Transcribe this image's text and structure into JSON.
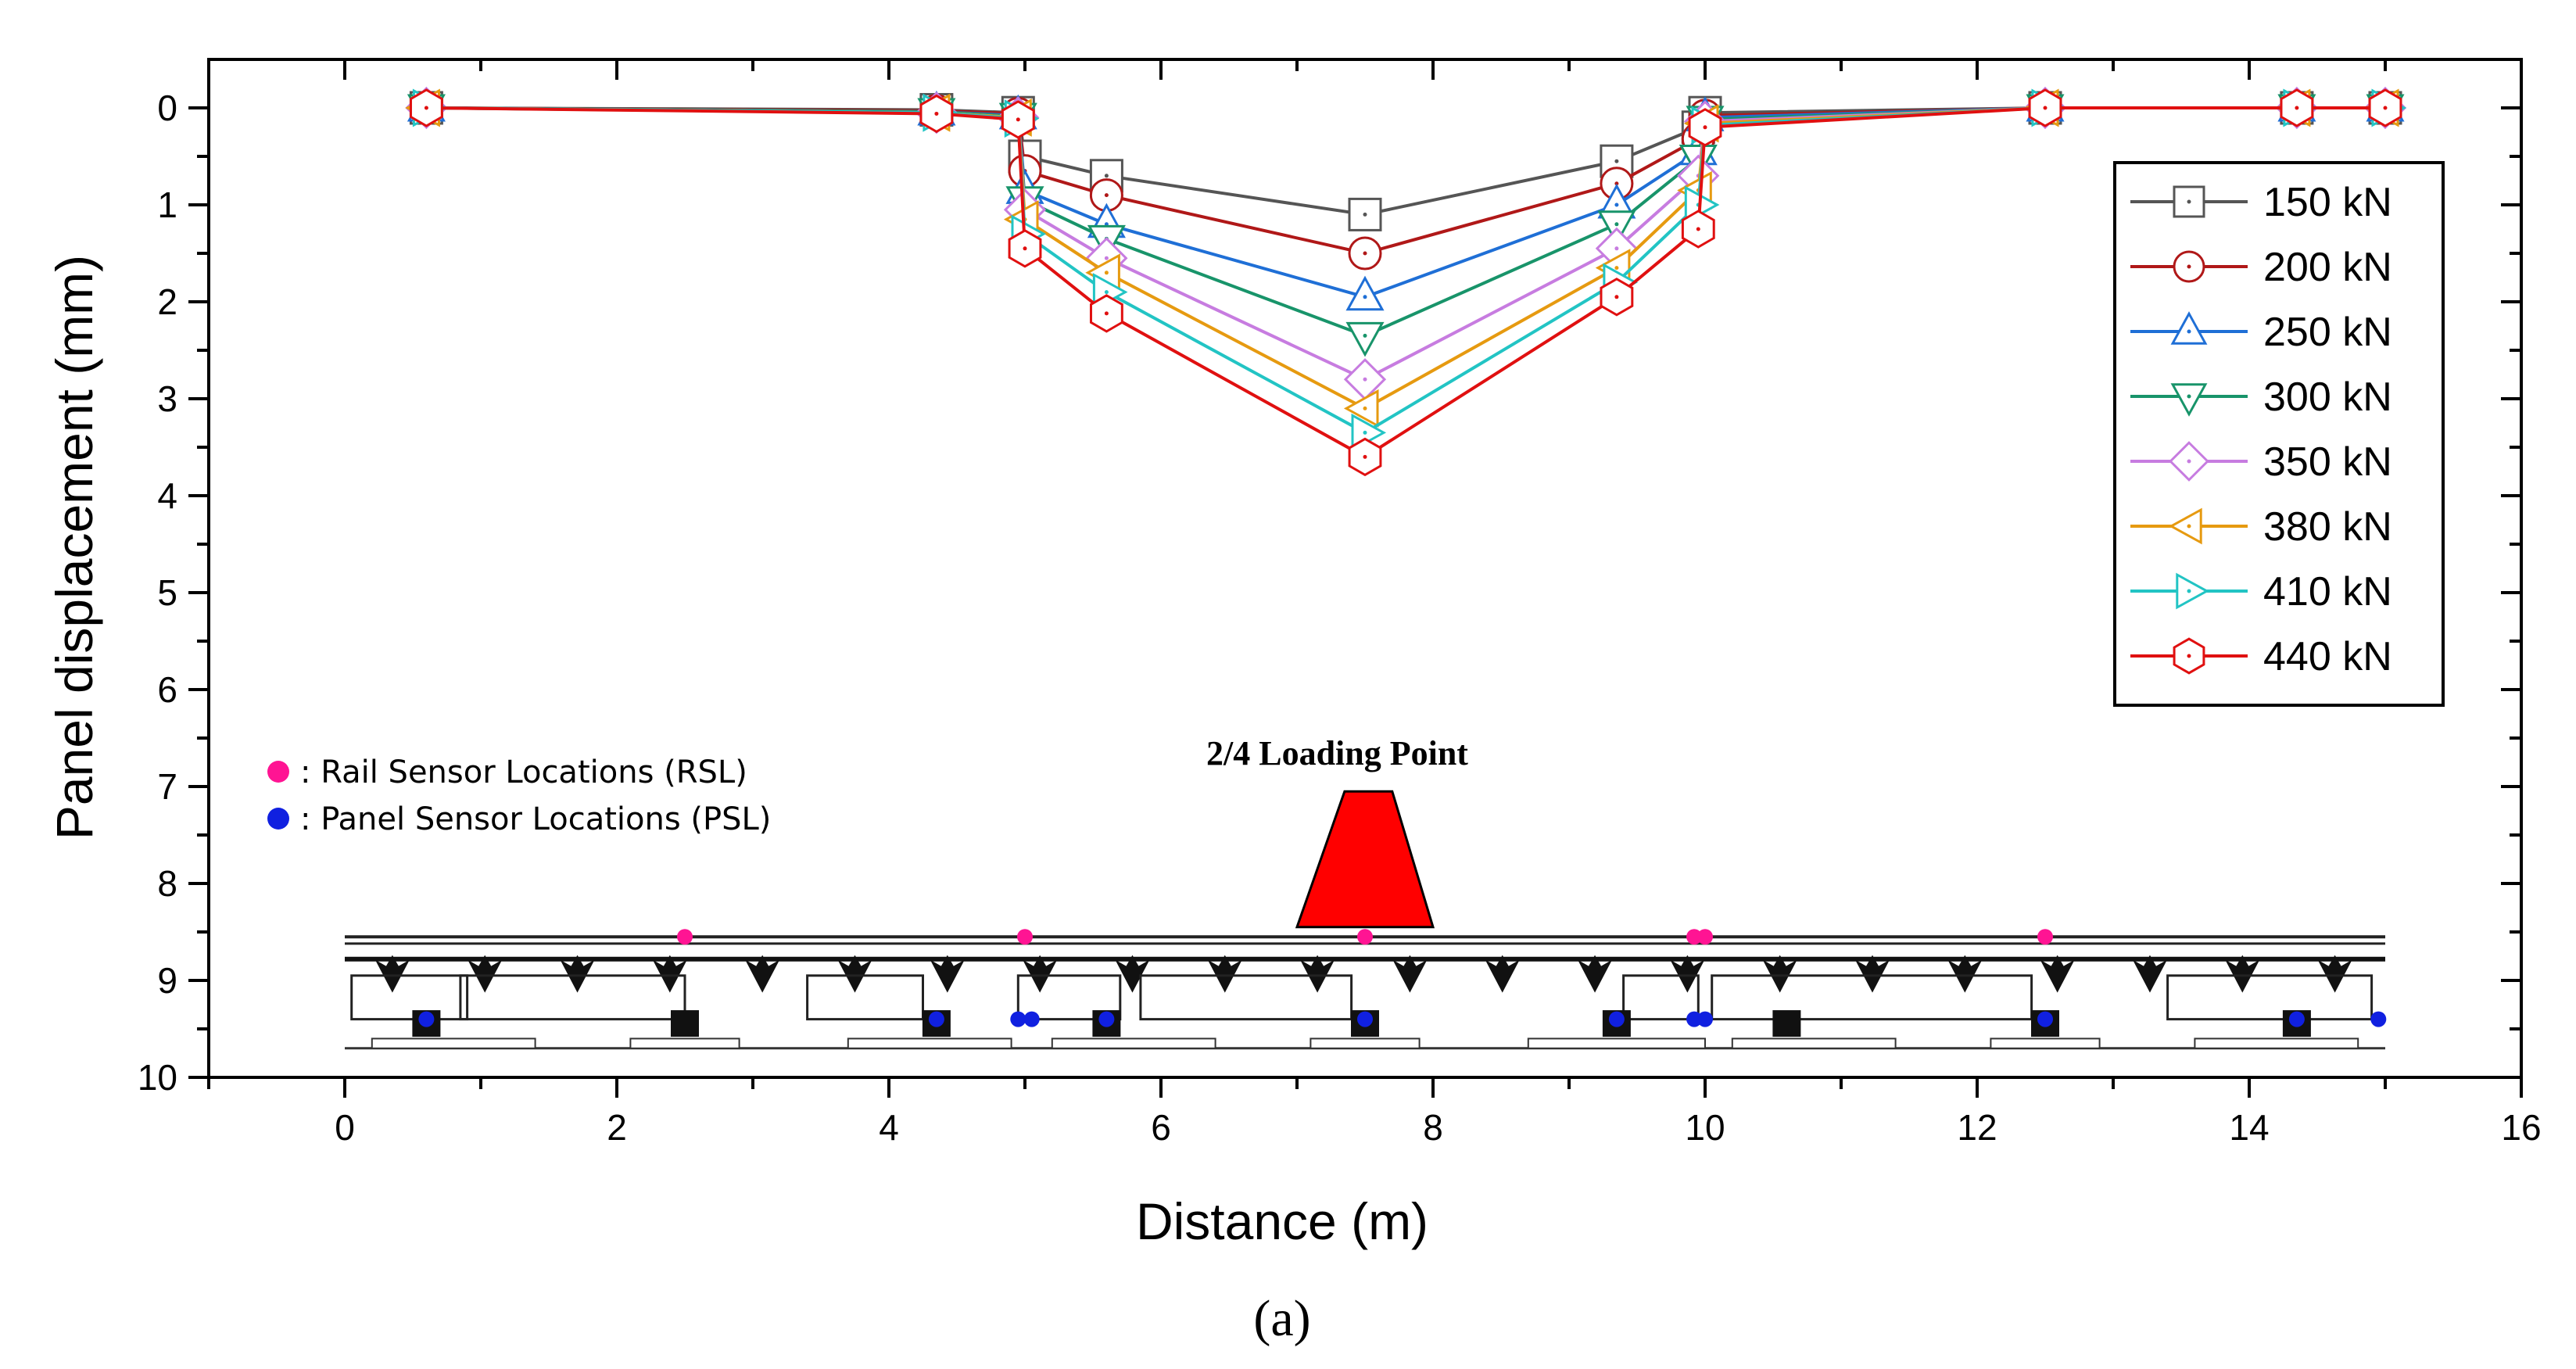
{
  "chart_data": {
    "type": "line",
    "xlabel": "Distance (m)",
    "ylabel": "Panel displacement (mm)",
    "xlim": [
      -1,
      16
    ],
    "ylim": [
      10,
      -0.5
    ],
    "y_inverted": true,
    "x_ticks": [
      0,
      2,
      4,
      6,
      8,
      10,
      12,
      14,
      16
    ],
    "y_ticks": [
      0,
      1,
      2,
      3,
      4,
      5,
      6,
      7,
      8,
      9,
      10
    ],
    "legend_position": "top-right",
    "x": [
      0.6,
      4.35,
      4.95,
      5.0,
      5.6,
      7.5,
      9.35,
      9.95,
      10.0,
      12.5,
      14.35,
      15.0
    ],
    "series": [
      {
        "name": "150 kN",
        "color": "#555555",
        "marker": "square",
        "values": [
          0,
          0.02,
          0.05,
          0.5,
          0.7,
          1.1,
          0.55,
          0.2,
          0.05,
          0,
          0,
          0
        ]
      },
      {
        "name": "200 kN",
        "color": "#b01818",
        "marker": "circle",
        "values": [
          0,
          0.03,
          0.06,
          0.65,
          0.9,
          1.5,
          0.78,
          0.32,
          0.08,
          0,
          0,
          0
        ]
      },
      {
        "name": "250 kN",
        "color": "#1f6fd6",
        "marker": "triangle-up",
        "values": [
          0,
          0.04,
          0.08,
          0.85,
          1.2,
          1.95,
          1.0,
          0.45,
          0.1,
          0,
          0,
          0
        ]
      },
      {
        "name": "300 kN",
        "color": "#18946a",
        "marker": "triangle-down",
        "values": [
          0,
          0.04,
          0.09,
          0.95,
          1.35,
          2.35,
          1.2,
          0.52,
          0.12,
          0,
          0,
          0
        ]
      },
      {
        "name": "350 kN",
        "color": "#c77ce0",
        "marker": "diamond",
        "values": [
          0,
          0.05,
          0.1,
          1.05,
          1.55,
          2.8,
          1.45,
          0.7,
          0.14,
          0,
          0,
          0
        ]
      },
      {
        "name": "380 kN",
        "color": "#e69a10",
        "marker": "triangle-left",
        "values": [
          0,
          0.05,
          0.1,
          1.15,
          1.7,
          3.1,
          1.65,
          0.85,
          0.16,
          0,
          0,
          0
        ]
      },
      {
        "name": "410 kN",
        "color": "#22c4c4",
        "marker": "triangle-right",
        "values": [
          0,
          0.05,
          0.11,
          1.3,
          1.9,
          3.35,
          1.8,
          1.0,
          0.18,
          0,
          0,
          0
        ]
      },
      {
        "name": "440 kN",
        "color": "#e01010",
        "marker": "hexagon",
        "values": [
          0,
          0.06,
          0.12,
          1.45,
          2.12,
          3.6,
          1.95,
          1.25,
          0.2,
          0,
          0,
          0
        ]
      }
    ],
    "annotations": {
      "rsl_label": ": Rail Sensor Locations (RSL)",
      "psl_label": ": Panel Sensor Locations (PSL)",
      "rsl_color": "#ff1493",
      "psl_color": "#1020e0",
      "loading_label": "2/4 Loading Point",
      "loading_color": "#ff0000",
      "rsl_x": [
        2.5,
        5.0,
        7.5,
        9.92,
        10.0,
        12.5
      ],
      "psl_x": [
        0.6,
        4.35,
        4.95,
        5.05,
        5.6,
        7.5,
        9.35,
        9.92,
        10.0,
        12.5,
        14.35,
        14.95
      ]
    },
    "caption": "(a)"
  }
}
